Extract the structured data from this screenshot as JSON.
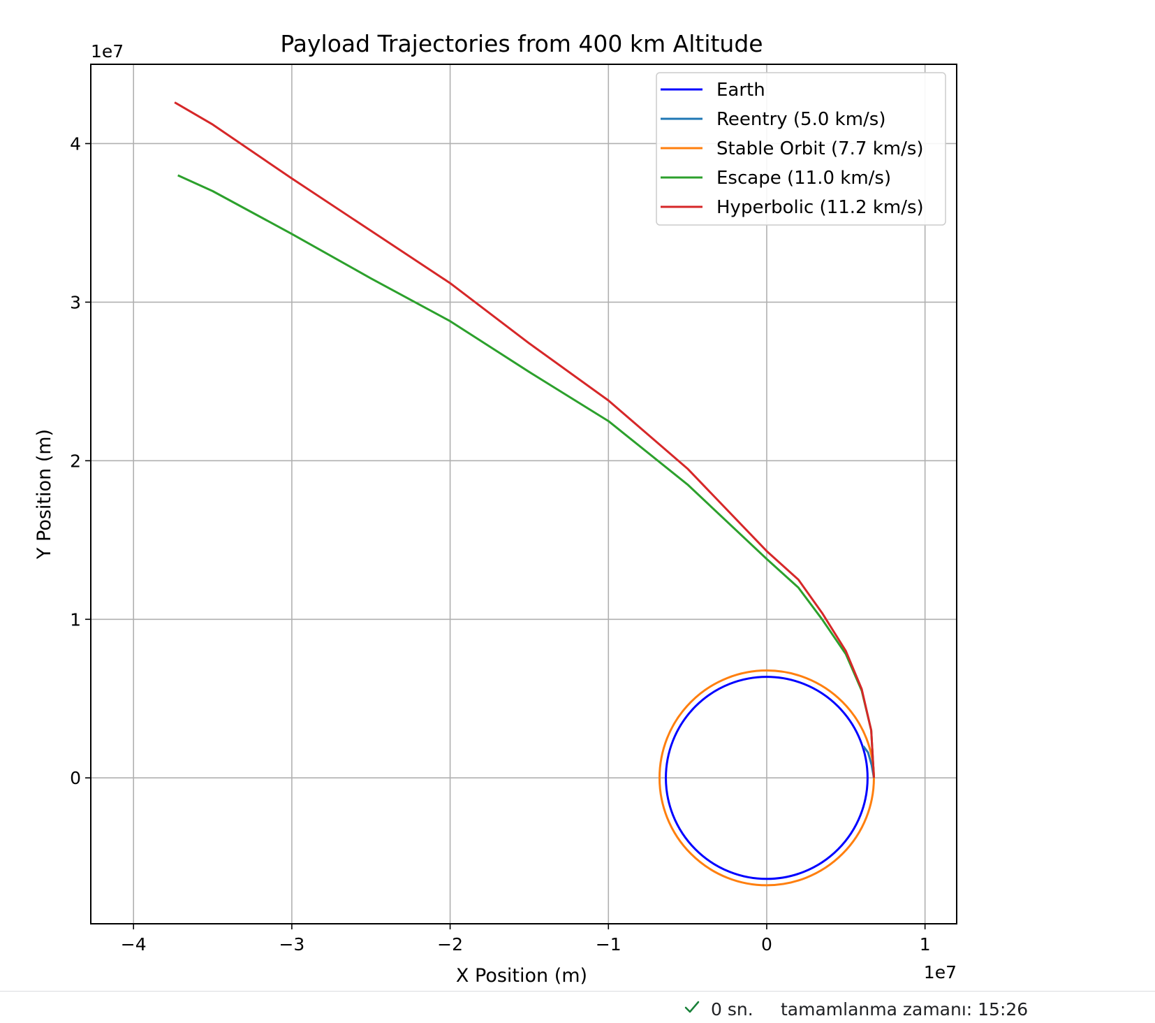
{
  "chart_data": {
    "type": "line",
    "title": "Payload Trajectories from 400 km Altitude",
    "xlabel": "X Position (m)",
    "ylabel": "Y Position (m)",
    "x_offset_label": "1e7",
    "y_offset_label": "1e7",
    "xlim": [
      -4.27,
      1.2
    ],
    "ylim": [
      -0.92,
      4.5
    ],
    "x_ticks": [
      -4,
      -3,
      -2,
      -1,
      0,
      1
    ],
    "y_ticks": [
      0,
      1,
      2,
      3,
      4
    ],
    "x_tick_labels": [
      "−4",
      "−3",
      "−2",
      "−1",
      "0",
      "1"
    ],
    "y_tick_labels": [
      "0",
      "1",
      "2",
      "3",
      "4"
    ],
    "grid": true,
    "legend_position": "top-right",
    "series": [
      {
        "name": "Earth",
        "color": "#0000ff",
        "kind": "circle",
        "center": [
          0,
          0
        ],
        "radius": 0.6371
      },
      {
        "name": "Reentry (5.0 km/s)",
        "color": "#1f77b4",
        "kind": "path",
        "points": [
          [
            0.6771,
            0
          ],
          [
            0.663,
            0.08
          ],
          [
            0.64,
            0.16
          ],
          [
            0.61,
            0.2
          ]
        ]
      },
      {
        "name": "Stable Orbit (7.7 km/s)",
        "color": "#ff7f0e",
        "kind": "circle",
        "center": [
          0,
          0
        ],
        "radius": 0.6771
      },
      {
        "name": "Escape (11.0 km/s)",
        "color": "#2ca02c",
        "kind": "path",
        "points": [
          [
            0.6771,
            0
          ],
          [
            0.66,
            0.3
          ],
          [
            0.6,
            0.55
          ],
          [
            0.5,
            0.78
          ],
          [
            0.35,
            1.0
          ],
          [
            0.2,
            1.2
          ],
          [
            0,
            1.38
          ],
          [
            -0.5,
            1.85
          ],
          [
            -1.0,
            2.25
          ],
          [
            -1.5,
            2.56
          ],
          [
            -2.0,
            2.88
          ],
          [
            -2.5,
            3.15
          ],
          [
            -3.0,
            3.43
          ],
          [
            -3.5,
            3.7
          ],
          [
            -3.72,
            3.8
          ]
        ]
      },
      {
        "name": "Hyperbolic (11.2 km/s)",
        "color": "#d62728",
        "kind": "path",
        "points": [
          [
            0.6771,
            0
          ],
          [
            0.66,
            0.3
          ],
          [
            0.6,
            0.56
          ],
          [
            0.5,
            0.8
          ],
          [
            0.35,
            1.04
          ],
          [
            0.2,
            1.25
          ],
          [
            0,
            1.43
          ],
          [
            -0.5,
            1.95
          ],
          [
            -1.0,
            2.38
          ],
          [
            -1.5,
            2.74
          ],
          [
            -2.0,
            3.12
          ],
          [
            -2.5,
            3.45
          ],
          [
            -3.0,
            3.78
          ],
          [
            -3.5,
            4.12
          ],
          [
            -3.74,
            4.26
          ]
        ]
      }
    ]
  },
  "status": {
    "duration": "0 sn.",
    "completed": "tamamlanma zamanı: 15:26",
    "check_color": "#188038"
  }
}
